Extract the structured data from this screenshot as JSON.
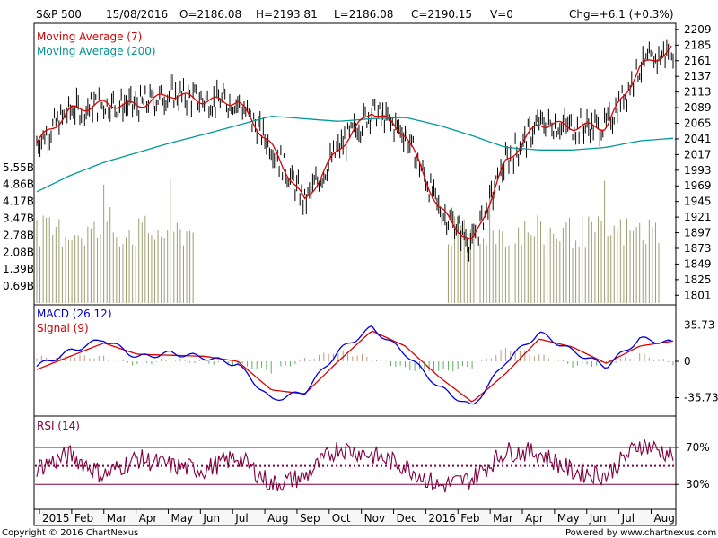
{
  "header": {
    "symbol": "S&P 500",
    "date": "15/08/2016",
    "open": "O=2186.08",
    "high": "H=2193.81",
    "low": "L=2186.08",
    "close": "C=2190.15",
    "volume": "V=0",
    "change": "Chg=+6.1 (+0.3%)"
  },
  "footer": {
    "copyright": "Copyright © 2016 ChartNexus",
    "powered": "Powered by www.chartnexus.com"
  },
  "colors": {
    "price_bar": "#000000",
    "ma7": "#dd0000",
    "ma200": "#009999",
    "macd": "#0000dd",
    "signal": "#dd0000",
    "hist_pos": "#c09878",
    "hist_neg": "#60b060",
    "volume": "#9aa070",
    "rsi": "#800040",
    "band": "#800040"
  },
  "chart_data": [
    {
      "type": "line",
      "title": "S&P 500",
      "legend": [
        "Moving Average (7)",
        "Moving Average (200)"
      ],
      "legend_placement": "top-left",
      "y_ticks": [
        2209,
        2185,
        2161,
        2137,
        2113,
        2089,
        2065,
        2041,
        2017,
        1993,
        1969,
        1945,
        1921,
        1897,
        1873,
        1849,
        1825,
        1801
      ],
      "ylim": [
        1789,
        2213
      ],
      "x_ticks": [
        "2015",
        "Feb",
        "Mar",
        "Apr",
        "May",
        "Jun",
        "Jul",
        "Aug",
        "Sep",
        "Oct",
        "Nov",
        "Dec",
        "2016",
        "Feb",
        "Mar",
        "Apr",
        "May",
        "Jun",
        "Jul",
        "Aug"
      ],
      "series": [
        {
          "name": "Moving Average (7)",
          "x": [
            "2015-01",
            "2015-02",
            "2015-03",
            "2015-04",
            "2015-05",
            "2015-06",
            "2015-07",
            "2015-08",
            "2015-09",
            "2015-10",
            "2015-11",
            "2015-12",
            "2016-01",
            "2016-02",
            "2016-03",
            "2016-04",
            "2016-05",
            "2016-06",
            "2016-07",
            "2016-08"
          ],
          "values": [
            2035,
            2085,
            2095,
            2092,
            2110,
            2100,
            2098,
            2030,
            1945,
            2025,
            2085,
            2050,
            1935,
            1880,
            2005,
            2065,
            2060,
            2060,
            2150,
            2180
          ]
        },
        {
          "name": "Moving Average (200)",
          "x": [
            "2015-01",
            "2015-02",
            "2015-03",
            "2015-04",
            "2015-05",
            "2015-06",
            "2015-07",
            "2015-08",
            "2015-09",
            "2015-10",
            "2015-11",
            "2015-12",
            "2016-01",
            "2016-02",
            "2016-03",
            "2016-04",
            "2016-05",
            "2016-06",
            "2016-07",
            "2016-08"
          ],
          "values": [
            1960,
            1985,
            2005,
            2020,
            2035,
            2048,
            2062,
            2076,
            2072,
            2068,
            2072,
            2074,
            2062,
            2046,
            2028,
            2024,
            2024,
            2028,
            2038,
            2042
          ]
        }
      ]
    },
    {
      "type": "bar",
      "title": "Volume",
      "y_ticks": [
        "5.55B",
        "4.86B",
        "4.17B",
        "3.47B",
        "2.78B",
        "2.08B",
        "1.39B",
        "0.69B"
      ],
      "ylim": [
        0,
        5.8
      ]
    },
    {
      "type": "line",
      "title": "MACD",
      "legend": [
        "MACD (26,12)",
        "Signal (9)"
      ],
      "y_ticks": [
        "35.73",
        "0",
        "-35.73"
      ],
      "ylim": [
        -52,
        52
      ],
      "series": [
        {
          "name": "MACD (26,12)",
          "x": [
            "2015-01",
            "2015-02",
            "2015-03",
            "2015-04",
            "2015-05",
            "2015-06",
            "2015-07",
            "2015-08",
            "2015-09",
            "2015-10",
            "2015-11",
            "2015-12",
            "2016-01",
            "2016-02",
            "2016-03",
            "2016-04",
            "2016-05",
            "2016-06",
            "2016-07",
            "2016-08"
          ],
          "values": [
            -5,
            10,
            22,
            4,
            8,
            4,
            -3,
            -38,
            -30,
            10,
            33,
            8,
            -25,
            -45,
            0,
            28,
            10,
            -5,
            22,
            18
          ]
        },
        {
          "name": "Signal (9)",
          "x": [
            "2015-01",
            "2015-02",
            "2015-03",
            "2015-04",
            "2015-05",
            "2015-06",
            "2015-07",
            "2015-08",
            "2015-09",
            "2015-10",
            "2015-11",
            "2015-12",
            "2016-01",
            "2016-02",
            "2016-03",
            "2016-04",
            "2016-05",
            "2016-06",
            "2016-07",
            "2016-08"
          ],
          "values": [
            -8,
            5,
            18,
            7,
            6,
            5,
            0,
            -28,
            -32,
            0,
            30,
            15,
            -15,
            -40,
            -12,
            22,
            14,
            -2,
            15,
            20
          ]
        }
      ]
    },
    {
      "type": "line",
      "title": "RSI (14)",
      "legend": [
        "RSI (14)"
      ],
      "y_ticks": [
        "70%",
        "30%"
      ],
      "ylim": [
        5,
        100
      ],
      "bands": [
        70,
        50,
        30
      ],
      "series": [
        {
          "name": "RSI (14)",
          "x": [
            "2015-01",
            "2015-02",
            "2015-03",
            "2015-04",
            "2015-05",
            "2015-06",
            "2015-07",
            "2015-08",
            "2015-09",
            "2015-10",
            "2015-11",
            "2015-12",
            "2016-01",
            "2016-02",
            "2016-03",
            "2016-04",
            "2016-05",
            "2016-06",
            "2016-07",
            "2016-08"
          ],
          "values": [
            48,
            62,
            40,
            58,
            50,
            46,
            60,
            30,
            38,
            70,
            62,
            50,
            28,
            36,
            66,
            64,
            44,
            40,
            74,
            62
          ]
        }
      ]
    }
  ]
}
